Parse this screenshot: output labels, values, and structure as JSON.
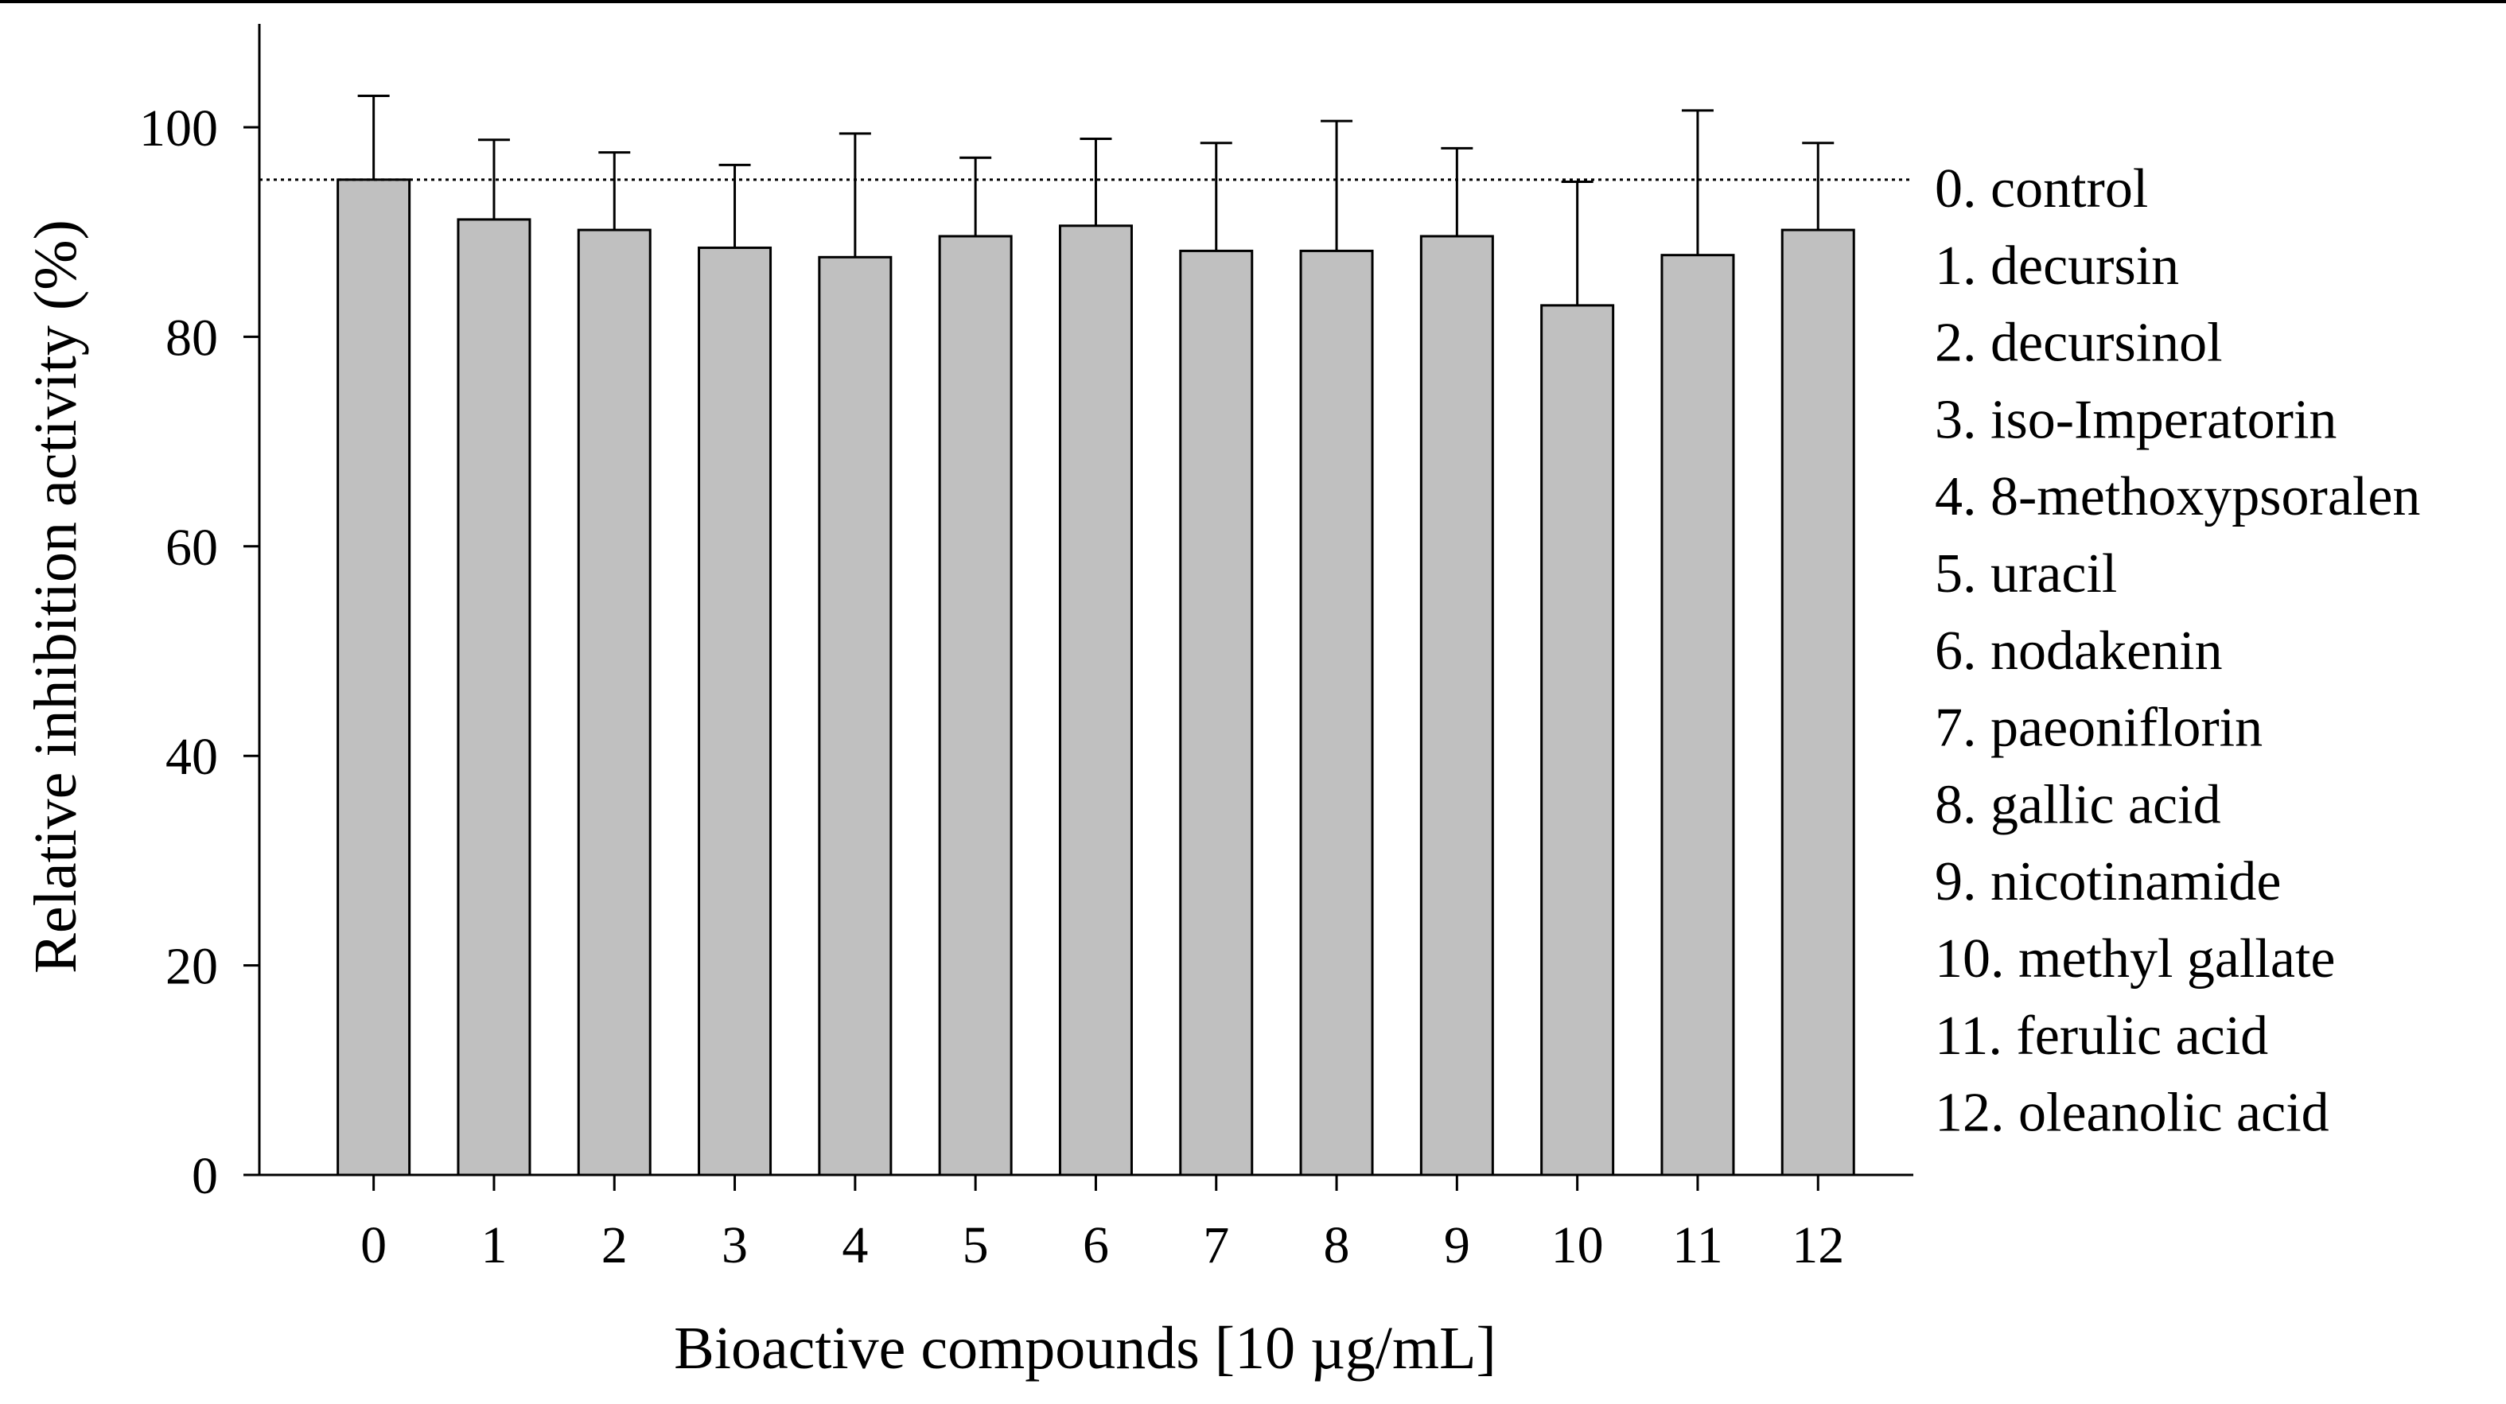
{
  "chart_data": {
    "type": "bar",
    "title": "",
    "xlabel": "Bioactive compounds [10 µg/mL]",
    "ylabel": "Relative inhibition activity (%)",
    "ylim": [
      0,
      110
    ],
    "yticks": [
      0,
      20,
      40,
      60,
      80,
      100
    ],
    "grid": false,
    "reference_line": {
      "y": 95,
      "style": "dotted"
    },
    "categories": [
      "0",
      "1",
      "2",
      "3",
      "4",
      "5",
      "6",
      "7",
      "8",
      "9",
      "10",
      "11",
      "12"
    ],
    "values": [
      95,
      91.2,
      90.2,
      88.5,
      87.6,
      89.6,
      90.6,
      88.2,
      88.2,
      89.6,
      83.0,
      87.8,
      90.2
    ],
    "errors": [
      8.0,
      7.6,
      7.4,
      7.9,
      11.8,
      7.5,
      8.3,
      10.3,
      12.4,
      8.4,
      11.8,
      13.8,
      8.3
    ],
    "bar_color": "#c0c0c0",
    "legend_position": "right",
    "legend": [
      "0. control",
      "1. decursin",
      "2. decursinol",
      "3. iso-Imperatorin",
      "4. 8-methoxypsoralen",
      "5. uracil",
      "6. nodakenin",
      "7. paeoniflorin",
      "8. gallic acid",
      "9. nicotinamide",
      "10. methyl gallate",
      "11. ferulic acid",
      "12. oleanolic acid"
    ]
  }
}
